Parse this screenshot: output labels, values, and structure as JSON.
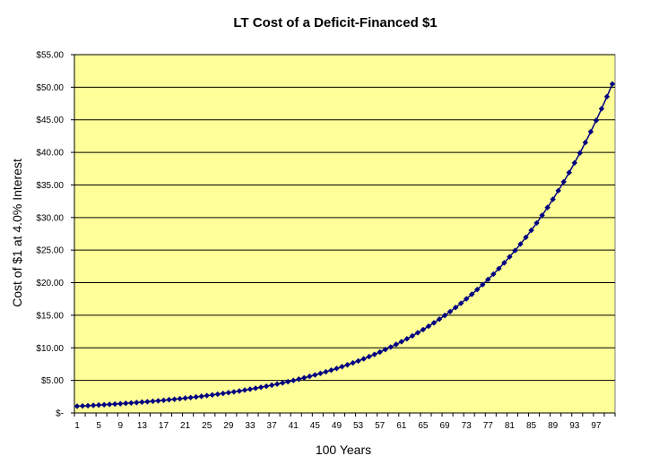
{
  "chart_data": {
    "type": "line",
    "title": "LT Cost of a Deficit-Financed $1",
    "xlabel": "100 Years",
    "ylabel": "Cost of $1 at 4.0% Interest",
    "ylim": [
      0,
      55
    ],
    "y_ticks": [
      "$-",
      "$5.00",
      "$10.00",
      "$15.00",
      "$20.00",
      "$25.00",
      "$30.00",
      "$35.00",
      "$40.00",
      "$45.00",
      "$50.00",
      "$55.00"
    ],
    "x_ticks": [
      "1",
      "5",
      "9",
      "13",
      "17",
      "21",
      "25",
      "29",
      "33",
      "37",
      "41",
      "45",
      "49",
      "53",
      "57",
      "61",
      "65",
      "69",
      "73",
      "77",
      "81",
      "85",
      "89",
      "93",
      "97"
    ],
    "plot_background": "#FFFF99",
    "line_color": "#000080",
    "grid": true,
    "legend": "none",
    "series": [
      {
        "x": [
          1,
          2,
          3,
          4,
          5,
          6,
          7,
          8,
          9,
          10,
          11,
          12,
          13,
          14,
          15,
          16,
          17,
          18,
          19,
          20,
          21,
          22,
          23,
          24,
          25,
          26,
          27,
          28,
          29,
          30,
          31,
          32,
          33,
          34,
          35,
          36,
          37,
          38,
          39,
          40,
          41,
          42,
          43,
          44,
          45,
          46,
          47,
          48,
          49,
          50,
          51,
          52,
          53,
          54,
          55,
          56,
          57,
          58,
          59,
          60,
          61,
          62,
          63,
          64,
          65,
          66,
          67,
          68,
          69,
          70,
          71,
          72,
          73,
          74,
          75,
          76,
          77,
          78,
          79,
          80,
          81,
          82,
          83,
          84,
          85,
          86,
          87,
          88,
          89,
          90,
          91,
          92,
          93,
          94,
          95,
          96,
          97,
          98,
          99,
          100
        ],
        "values": [
          1.04,
          1.08,
          1.12,
          1.17,
          1.22,
          1.27,
          1.32,
          1.37,
          1.42,
          1.48,
          1.54,
          1.6,
          1.67,
          1.73,
          1.8,
          1.87,
          1.95,
          2.03,
          2.11,
          2.19,
          2.28,
          2.37,
          2.46,
          2.56,
          2.67,
          2.77,
          2.88,
          3.0,
          3.12,
          3.24,
          3.37,
          3.51,
          3.65,
          3.79,
          3.95,
          4.1,
          4.27,
          4.44,
          4.62,
          4.8,
          4.99,
          5.19,
          5.4,
          5.62,
          5.84,
          6.07,
          6.32,
          6.57,
          6.83,
          7.11,
          7.39,
          7.69,
          7.99,
          8.31,
          8.65,
          8.99,
          9.35,
          9.73,
          10.12,
          10.52,
          10.94,
          11.38,
          11.83,
          12.31,
          12.8,
          13.31,
          13.84,
          14.4,
          14.97,
          15.57,
          16.19,
          16.84,
          17.52,
          18.22,
          18.95,
          19.7,
          20.49,
          21.31,
          22.16,
          23.05,
          23.97,
          24.93,
          25.93,
          26.96,
          28.04,
          29.16,
          30.33,
          31.54,
          32.8,
          34.12,
          35.48,
          36.9,
          38.38,
          39.91,
          41.51,
          43.17,
          44.9,
          46.69,
          48.56,
          50.5
        ]
      }
    ]
  }
}
